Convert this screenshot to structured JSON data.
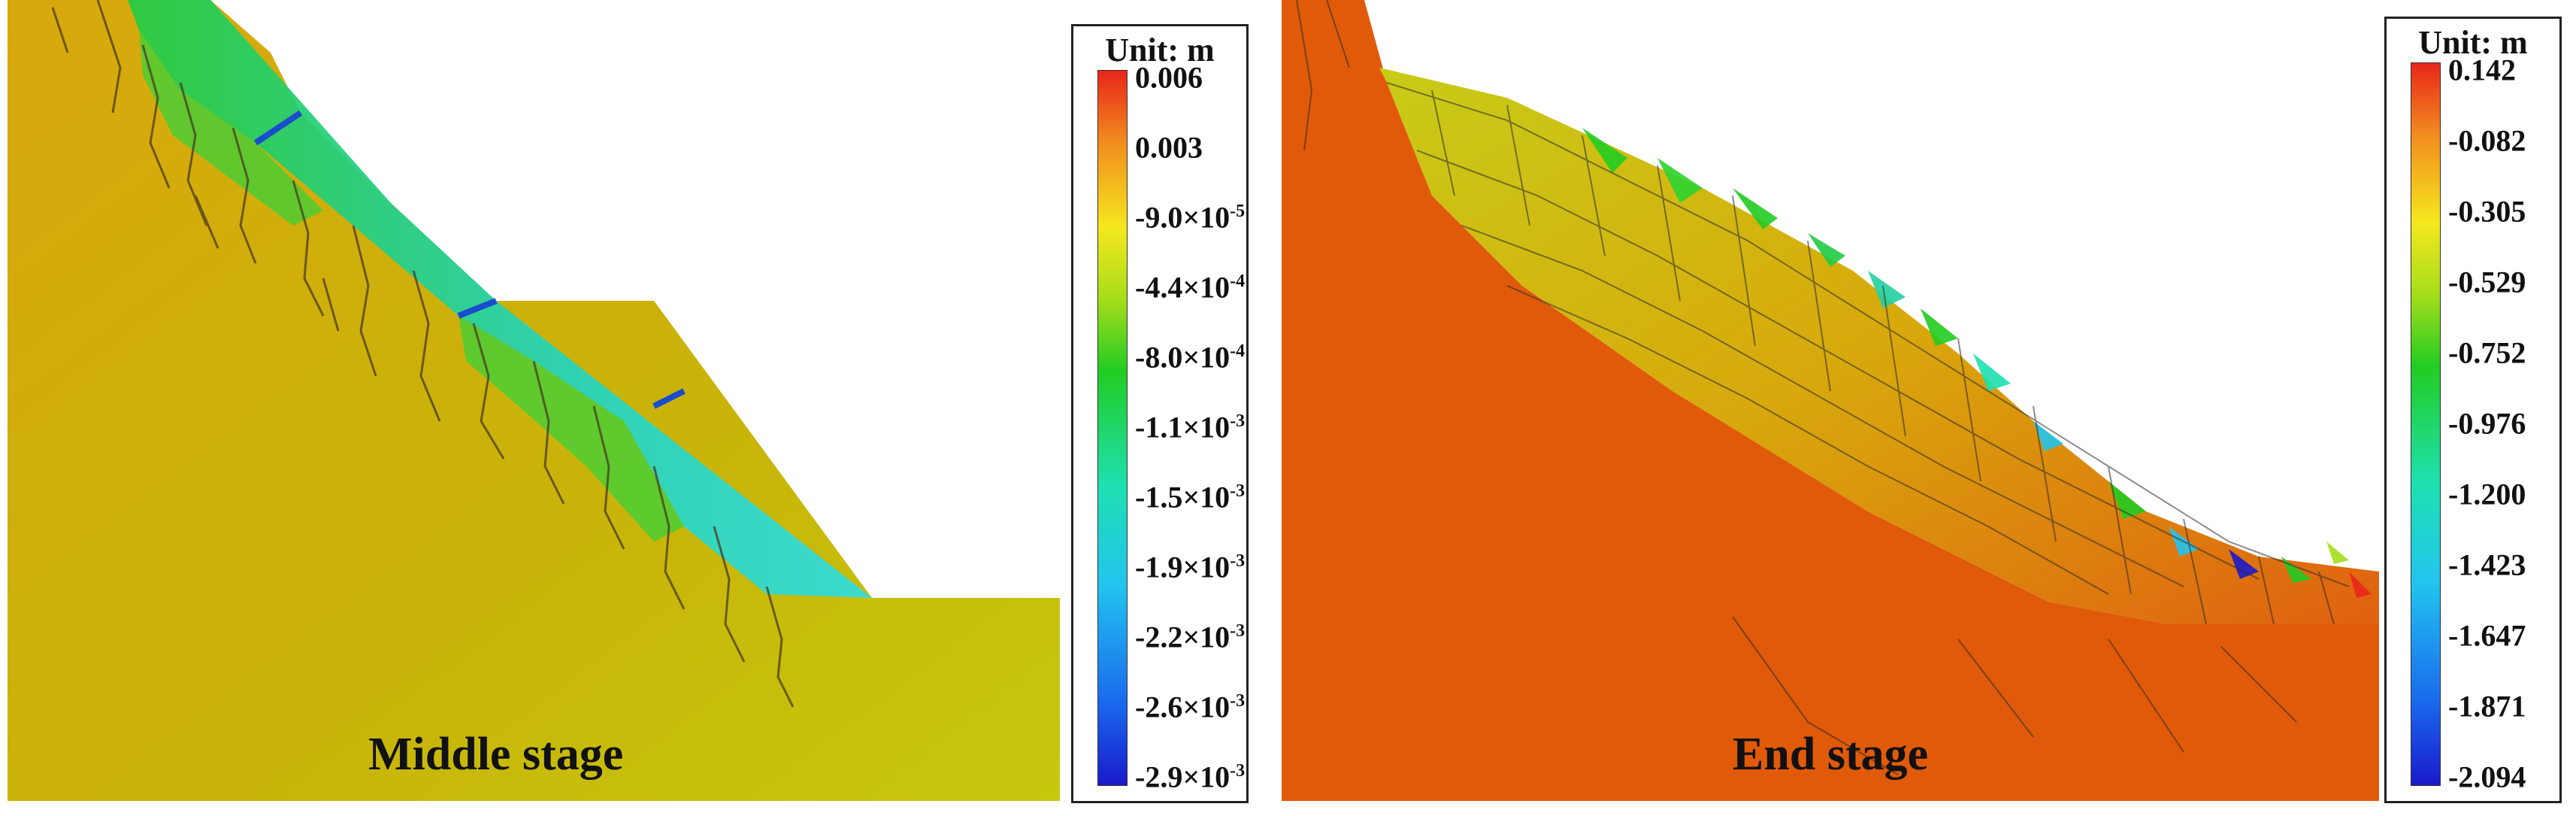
{
  "panels": [
    {
      "caption": "Middle stage"
    },
    {
      "caption": "End stage"
    }
  ],
  "legends": [
    {
      "unit": "Unit: m",
      "ticks": [
        {
          "text": "0.006"
        },
        {
          "text": "0.003"
        },
        {
          "text": "-9.0×10",
          "exp": "-5"
        },
        {
          "text": "-4.4×10",
          "exp": "-4"
        },
        {
          "text": "-8.0×10",
          "exp": "-4"
        },
        {
          "text": "-1.1×10",
          "exp": "-3"
        },
        {
          "text": "-1.5×10",
          "exp": "-3"
        },
        {
          "text": "-1.9×10",
          "exp": "-3"
        },
        {
          "text": "-2.2×10",
          "exp": "-3"
        },
        {
          "text": "-2.6×10",
          "exp": "-3"
        },
        {
          "text": "-2.9×10",
          "exp": "-3"
        }
      ]
    },
    {
      "unit": "Unit: m",
      "ticks": [
        {
          "text": "0.142"
        },
        {
          "text": "-0.082"
        },
        {
          "text": "-0.305"
        },
        {
          "text": "-0.529"
        },
        {
          "text": "-0.752"
        },
        {
          "text": "-0.976"
        },
        {
          "text": "-1.200"
        },
        {
          "text": "-1.423"
        },
        {
          "text": "-1.647"
        },
        {
          "text": "-1.871"
        },
        {
          "text": "-2.094"
        }
      ]
    }
  ],
  "colors": {
    "colormap": [
      "#e8261a",
      "#f28c1e",
      "#f5e81e",
      "#a6dd1a",
      "#22cc22",
      "#1ee0b0",
      "#22c4ee",
      "#1a6cee",
      "#1a1acc"
    ],
    "middle_slope": "#c8b10a",
    "end_slope": "#e05a0a",
    "crack": "#5a3a20"
  }
}
